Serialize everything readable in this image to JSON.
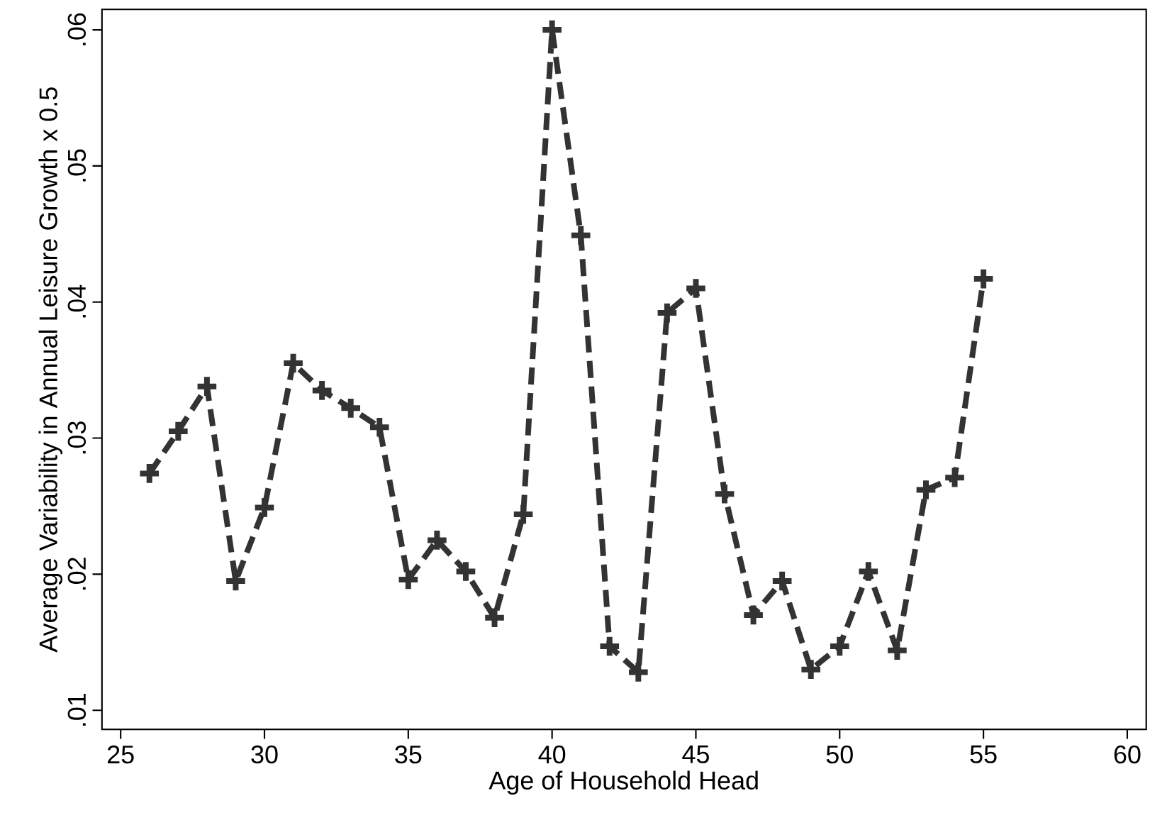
{
  "chart_data": {
    "type": "line",
    "xlabel": "Age of Household Head",
    "ylabel": "Average Variability in Annual Leisure Growth x 0.5",
    "x": [
      26,
      27,
      28,
      29,
      30,
      31,
      32,
      33,
      34,
      35,
      36,
      37,
      38,
      39,
      40,
      41,
      42,
      43,
      44,
      45,
      46,
      47,
      48,
      49,
      50,
      51,
      52,
      53,
      54,
      55
    ],
    "series": [
      {
        "color": "#333333",
        "values": [
          0.0274,
          0.0305,
          0.0338,
          0.0195,
          0.0249,
          0.0355,
          0.0335,
          0.0322,
          0.0308,
          0.0196,
          0.0225,
          0.0202,
          0.0168,
          0.0244,
          0.06,
          0.0449,
          0.0147,
          0.0128,
          0.0392,
          0.041,
          0.0259,
          0.017,
          0.0195,
          0.013,
          0.0147,
          0.0202,
          0.0144,
          0.0262,
          0.0271,
          0.0417
        ]
      }
    ],
    "xlim": [
      24.35,
      60.66
    ],
    "ylim": [
      0.0086,
      0.0615
    ],
    "xticks": [
      25,
      30,
      35,
      40,
      45,
      50,
      55,
      60
    ],
    "yticks": [
      {
        "value": 0.01,
        "label": ".01"
      },
      {
        "value": 0.02,
        "label": ".02"
      },
      {
        "value": 0.03,
        "label": ".03"
      },
      {
        "value": 0.04,
        "label": ".04"
      },
      {
        "value": 0.05,
        "label": ".05"
      },
      {
        "value": 0.06,
        "label": ".06"
      }
    ],
    "grid": false,
    "marker": "cross",
    "line_style": "dashed"
  }
}
